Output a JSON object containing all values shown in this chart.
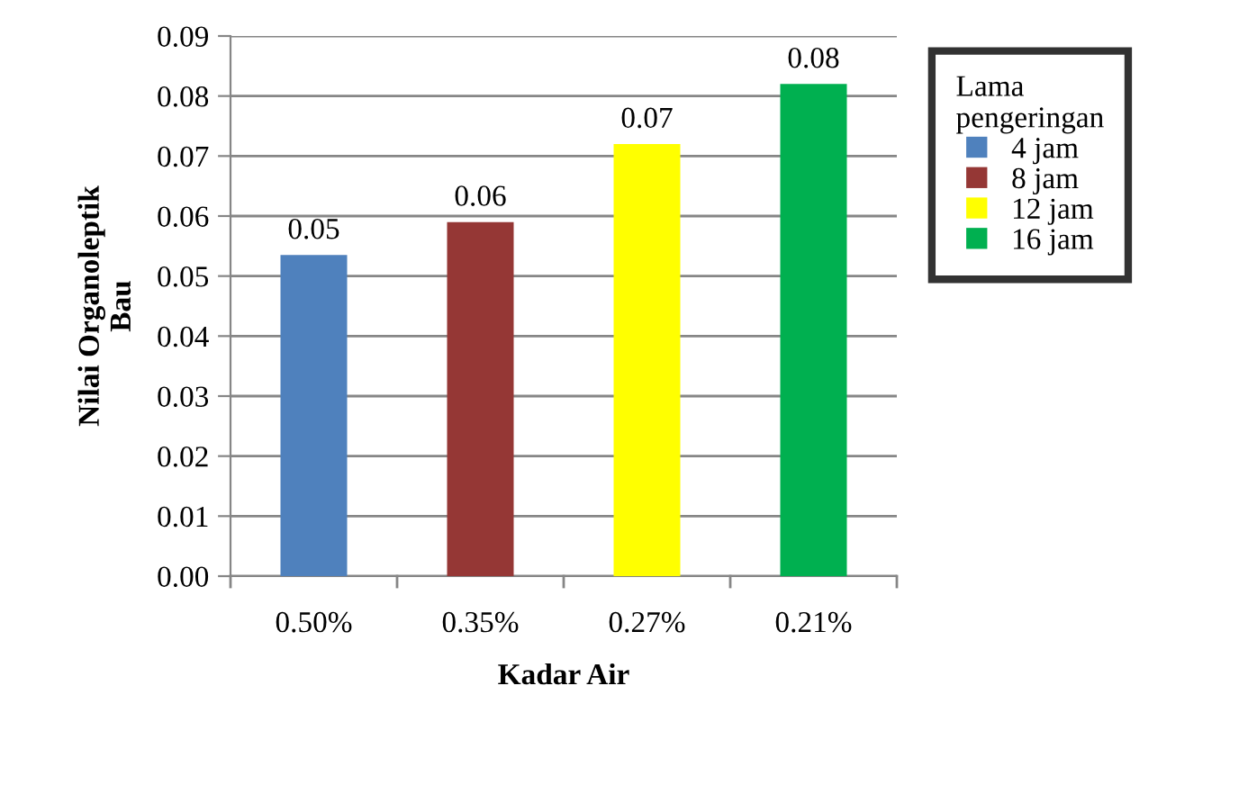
{
  "chart_data": {
    "type": "bar",
    "xlabel": "Kadar Air",
    "ylabel": "Nilai Organoleptik\nBau",
    "legend_title": "Lama\npengeringan",
    "categories": [
      "0.50%",
      "0.35%",
      "0.27%",
      "0.21%"
    ],
    "series": [
      {
        "name": "4 jam",
        "color": "#4f81bd",
        "values": [
          0.0535,
          null,
          null,
          null
        ],
        "value_labels": [
          "0.05",
          null,
          null,
          null
        ]
      },
      {
        "name": "8 jam",
        "color": "#953735",
        "values": [
          null,
          0.059,
          null,
          null
        ],
        "value_labels": [
          null,
          "0.06",
          null,
          null
        ]
      },
      {
        "name": "12 jam",
        "color": "#ffff00",
        "values": [
          null,
          null,
          0.072,
          null
        ],
        "value_labels": [
          null,
          null,
          "0.07",
          null
        ]
      },
      {
        "name": "16 jam",
        "color": "#00b050",
        "values": [
          null,
          null,
          null,
          0.082
        ],
        "value_labels": [
          null,
          null,
          null,
          "0.08"
        ]
      }
    ],
    "ylim": [
      0,
      0.09
    ],
    "yticks": [
      "0.00",
      "0.01",
      "0.02",
      "0.03",
      "0.04",
      "0.05",
      "0.06",
      "0.07",
      "0.08",
      "0.09"
    ],
    "grid": "y",
    "legend": "right"
  }
}
